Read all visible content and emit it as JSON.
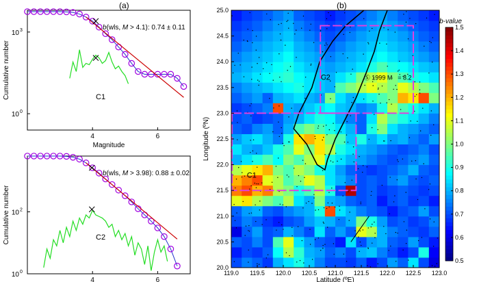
{
  "panels": {
    "a": "(a)",
    "b": "(b)"
  },
  "chart_data": [
    {
      "id": "c1",
      "type": "line",
      "title": "",
      "xlabel": "Magnitude",
      "ylabel": "Cumulative number",
      "xlim": [
        2.0,
        7.0
      ],
      "x_ticks": [
        "4",
        "6"
      ],
      "x_tick_values": [
        4,
        6
      ],
      "y_ticks": [
        "10",
        "10"
      ],
      "y_tick_superscripts": [
        "3",
        "0"
      ],
      "y_log_range": [
        -0.6,
        3.8
      ],
      "y_tick_exponents": [
        3,
        0
      ],
      "label": "C1",
      "annotation": {
        "b": "b",
        "rest": "(wls, ",
        "M": "M",
        "cond": " > 4.1): 0.74 ± 0.11"
      },
      "mc_marker": {
        "x": 4.1,
        "y_log": 2.05
      },
      "series": [
        {
          "name": "",
          "role": "cumulative",
          "color": "#a000e0",
          "x": [
            2.0,
            2.2,
            2.4,
            2.6,
            2.8,
            3.0,
            3.2,
            3.4,
            3.6,
            3.8,
            4.0,
            4.2,
            4.4,
            4.6,
            4.8,
            5.0,
            5.2,
            5.4,
            5.6,
            5.8,
            6.0,
            6.2,
            6.4,
            6.6,
            6.8
          ],
          "log_y": [
            3.75,
            3.75,
            3.75,
            3.75,
            3.75,
            3.75,
            3.74,
            3.72,
            3.66,
            3.55,
            3.4,
            3.18,
            2.94,
            2.72,
            2.45,
            2.18,
            1.85,
            1.55,
            1.45,
            1.45,
            1.45,
            1.45,
            1.45,
            1.3,
            1.0
          ]
        },
        {
          "name": "",
          "role": "frequency",
          "color": "#22dd22",
          "x": [
            3.3,
            3.4,
            3.5,
            3.6,
            3.7,
            3.8,
            3.9,
            4.0,
            4.1,
            4.2,
            4.3,
            4.4,
            4.5,
            4.6,
            4.7,
            4.8,
            4.9,
            5.0,
            5.1
          ],
          "log_y": [
            1.3,
            1.9,
            1.55,
            2.35,
            1.7,
            1.85,
            1.8,
            2.0,
            2.15,
            2.05,
            1.85,
            1.95,
            2.25,
            1.9,
            1.65,
            1.75,
            1.55,
            1.4,
            1.1
          ]
        },
        {
          "name": "",
          "role": "fit",
          "color": "#cc0000",
          "x": [
            3.8,
            6.8
          ],
          "log_y": [
            3.55,
            0.6
          ]
        }
      ]
    },
    {
      "id": "c2",
      "type": "line",
      "title": "",
      "xlabel": "Magnitude",
      "ylabel": "Cumulative number",
      "xlim": [
        2.0,
        7.0
      ],
      "x_ticks": [
        "4",
        "6"
      ],
      "x_tick_values": [
        4,
        6
      ],
      "y_ticks": [
        "10",
        "10"
      ],
      "y_tick_superscripts": [
        "2",
        "0"
      ],
      "y_log_range": [
        0.0,
        3.8
      ],
      "y_tick_exponents": [
        2,
        0
      ],
      "label": "C2",
      "annotation": {
        "b": "b",
        "rest": "(wls, ",
        "M": "M",
        "cond": " > 3.98): 0.88 ± 0.02"
      },
      "mc_marker": {
        "x": 3.98,
        "y_log": 2.08
      },
      "series": [
        {
          "name": "",
          "role": "cumulative",
          "color": "#a000e0",
          "x": [
            2.0,
            2.2,
            2.4,
            2.6,
            2.8,
            3.0,
            3.2,
            3.4,
            3.6,
            3.8,
            4.0,
            4.2,
            4.4,
            4.6,
            4.8,
            5.0,
            5.2,
            5.4,
            5.6,
            5.8,
            6.0,
            6.2,
            6.4,
            6.6
          ],
          "log_y": [
            3.8,
            3.8,
            3.8,
            3.8,
            3.8,
            3.8,
            3.79,
            3.76,
            3.7,
            3.58,
            3.42,
            3.25,
            3.06,
            2.88,
            2.7,
            2.52,
            2.32,
            2.1,
            1.9,
            1.7,
            1.48,
            1.2,
            0.8,
            0.25
          ]
        },
        {
          "name": "",
          "role": "frequency",
          "color": "#22dd22",
          "x": [
            2.5,
            2.6,
            2.7,
            2.8,
            2.9,
            3.0,
            3.1,
            3.2,
            3.3,
            3.4,
            3.5,
            3.6,
            3.7,
            3.8,
            3.9,
            4.0,
            4.1,
            4.2,
            4.3,
            4.4,
            4.5,
            4.6,
            4.7,
            4.8,
            4.9,
            5.0,
            5.1,
            5.2,
            5.3,
            5.4,
            5.5,
            5.6,
            5.7,
            5.8,
            5.9,
            6.0,
            6.1,
            6.2,
            6.3
          ],
          "log_y": [
            0.2,
            0.8,
            0.5,
            1.1,
            0.9,
            1.4,
            1.0,
            1.5,
            1.2,
            1.7,
            1.4,
            1.8,
            1.6,
            1.9,
            1.8,
            2.05,
            1.9,
            1.85,
            1.8,
            1.7,
            1.5,
            1.6,
            1.2,
            1.4,
            1.1,
            1.3,
            0.9,
            1.2,
            0.6,
            1.0,
            0.8,
            0.3,
            0.9,
            0.1,
            0.7,
            1.1,
            0.7,
            0.9,
            0.4
          ]
        },
        {
          "name": "",
          "role": "fit",
          "color": "#cc0000",
          "x": [
            3.8,
            6.6
          ],
          "log_y": [
            3.58,
            1.12
          ]
        }
      ]
    },
    {
      "id": "bmap",
      "type": "heatmap",
      "title": "",
      "xlabel": "Latitude (ºE)",
      "ylabel": "Longitude (ºN)",
      "xlim": [
        119.0,
        123.0
      ],
      "ylim": [
        20.0,
        25.0
      ],
      "x_ticks": [
        "119.0",
        "119.5",
        "120.0",
        "120.5",
        "121.0",
        "121.5",
        "122.0",
        "122.5",
        "123.0"
      ],
      "y_ticks": [
        "20.0",
        "20.5",
        "21.0",
        "21.5",
        "22.0",
        "22.5",
        "23.0",
        "23.5",
        "24.0",
        "24.5",
        "25.0"
      ],
      "colorbar": {
        "label": "b-value",
        "min": 0.5,
        "max": 1.5,
        "ticks": [
          "0.5",
          "0.6",
          "0.7",
          "0.8",
          "0.9",
          "1.0",
          "1.1",
          "1.2",
          "1.3",
          "1.4",
          "1.5"
        ]
      },
      "region_labels": {
        "c1": "C1",
        "c2": "C2"
      },
      "text_annotation": "Ⓢ 1999 M",
      "text_annotation_tail": "= 8.2",
      "cell_size_deg": 0.2,
      "grid_origin": [
        119.0,
        20.0
      ],
      "values": [
        [
          0.7,
          0.75,
          0.72,
          0.68,
          0.8,
          0.85,
          0.9,
          0.82,
          0.75,
          0.7,
          0.7,
          0.68,
          0.72,
          0.65,
          0.7,
          0.78,
          0.72,
          0.85,
          0.7,
          0.6
        ],
        [
          0.65,
          0.7,
          0.68,
          0.72,
          0.88,
          1.05,
          0.92,
          0.8,
          0.78,
          0.72,
          0.75,
          0.7,
          0.8,
          0.82,
          0.75,
          0.7,
          0.65,
          0.7,
          0.9,
          0.62
        ],
        [
          0.72,
          0.7,
          0.75,
          0.7,
          0.95,
          1.1,
          0.85,
          0.78,
          0.72,
          0.7,
          0.65,
          0.85,
          0.7,
          0.78,
          0.8,
          0.72,
          0.7,
          0.78,
          0.7,
          0.65
        ],
        [
          0.6,
          0.72,
          0.78,
          0.7,
          0.72,
          0.8,
          0.75,
          0.7,
          0.85,
          0.72,
          0.78,
          0.72,
          1.1,
          1.05,
          0.8,
          0.75,
          0.72,
          0.7,
          0.68,
          0.72
        ],
        [
          0.7,
          0.75,
          0.72,
          0.68,
          0.65,
          0.7,
          0.72,
          0.78,
          0.82,
          0.8,
          0.75,
          0.8,
          1.0,
          0.9,
          0.78,
          0.7,
          0.72,
          0.68,
          0.7,
          0.75
        ],
        [
          0.72,
          0.78,
          0.8,
          0.72,
          0.7,
          0.75,
          0.78,
          0.8,
          0.9,
          1.3,
          0.85,
          0.8,
          0.75,
          0.72,
          0.7,
          0.65,
          0.7,
          0.72,
          0.78,
          0.7
        ],
        [
          1.1,
          1.15,
          1.05,
          1.0,
          0.95,
          1.05,
          0.85,
          0.8,
          1.0,
          0.8,
          0.78,
          0.72,
          0.7,
          0.72,
          0.65,
          0.7,
          0.72,
          0.68,
          0.7,
          0.65
        ],
        [
          1.25,
          1.3,
          1.2,
          1.25,
          1.05,
          1.0,
          0.9,
          0.95,
          1.05,
          0.9,
          0.7,
          1.45,
          0.7,
          0.72,
          0.68,
          0.7,
          0.72,
          0.7,
          0.68,
          0.7
        ],
        [
          1.2,
          1.25,
          1.3,
          1.1,
          1.05,
          0.95,
          1.0,
          1.1,
          1.05,
          0.85,
          0.8,
          0.75,
          0.7,
          0.72,
          0.7,
          0.75,
          0.78,
          0.72,
          0.7,
          0.72
        ],
        [
          1.05,
          1.1,
          1.15,
          1.2,
          1.0,
          0.95,
          1.05,
          1.0,
          0.9,
          0.85,
          0.78,
          0.72,
          0.7,
          0.68,
          0.7,
          0.72,
          0.75,
          0.8,
          0.72,
          0.7
        ],
        [
          0.8,
          0.85,
          0.9,
          0.95,
          0.88,
          1.0,
          0.95,
          1.05,
          1.1,
          0.9,
          0.85,
          0.8,
          0.78,
          0.75,
          0.72,
          0.7,
          0.72,
          0.75,
          0.78,
          0.72
        ],
        [
          0.85,
          0.8,
          0.78,
          0.82,
          0.9,
          0.95,
          1.1,
          1.0,
          1.15,
          1.05,
          0.9,
          0.85,
          0.8,
          0.78,
          0.75,
          0.72,
          0.7,
          0.72,
          0.75,
          0.7
        ],
        [
          0.78,
          0.82,
          0.85,
          0.8,
          0.75,
          0.9,
          1.15,
          1.2,
          1.15,
          1.0,
          0.95,
          0.82,
          0.9,
          0.8,
          0.85,
          0.78,
          0.8,
          0.75,
          0.72,
          0.78
        ],
        [
          0.72,
          0.7,
          0.75,
          0.78,
          0.72,
          0.8,
          0.95,
          1.0,
          0.95,
          0.9,
          0.85,
          0.8,
          0.72,
          0.9,
          1.0,
          0.85,
          0.8,
          0.78,
          0.75,
          0.72
        ],
        [
          0.7,
          0.72,
          0.68,
          0.7,
          0.72,
          0.78,
          0.8,
          0.85,
          0.9,
          0.88,
          0.8,
          0.75,
          0.72,
          0.85,
          1.05,
          0.95,
          0.9,
          0.85,
          0.8,
          0.75
        ],
        [
          0.68,
          0.7,
          0.72,
          0.75,
          1.3,
          0.8,
          0.78,
          0.82,
          0.85,
          0.88,
          0.82,
          0.8,
          0.75,
          0.78,
          0.9,
          1.05,
          0.95,
          0.9,
          0.85,
          0.8
        ],
        [
          0.72,
          0.75,
          0.78,
          0.72,
          0.8,
          0.82,
          0.85,
          0.8,
          0.78,
          1.0,
          0.85,
          0.8,
          0.85,
          0.9,
          0.95,
          1.0,
          1.2,
          1.15,
          1.3,
          1.0
        ],
        [
          0.75,
          0.78,
          0.8,
          0.82,
          0.85,
          0.88,
          0.9,
          0.85,
          0.82,
          0.8,
          0.95,
          1.0,
          1.05,
          1.1,
          1.05,
          1.0,
          1.1,
          1.05,
          1.0,
          0.95
        ],
        [
          0.8,
          0.82,
          0.85,
          0.88,
          0.9,
          0.92,
          0.88,
          0.85,
          0.82,
          0.8,
          0.85,
          0.9,
          1.0,
          1.05,
          1.1,
          1.0,
          0.95,
          0.9,
          0.88,
          0.85
        ],
        [
          0.78,
          0.8,
          0.82,
          0.85,
          0.88,
          0.9,
          0.85,
          0.82,
          0.8,
          0.78,
          0.8,
          0.82,
          0.85,
          0.9,
          0.95,
          0.9,
          0.88,
          0.85,
          0.82,
          0.8
        ],
        [
          0.75,
          0.78,
          0.8,
          0.82,
          0.85,
          0.88,
          0.82,
          0.8,
          0.78,
          0.75,
          0.78,
          0.8,
          0.82,
          0.85,
          0.88,
          0.85,
          0.82,
          0.8,
          0.78,
          0.75
        ],
        [
          0.72,
          0.75,
          0.78,
          0.8,
          0.82,
          0.85,
          0.8,
          0.78,
          0.75,
          0.72,
          0.75,
          0.78,
          0.8,
          0.82,
          0.85,
          0.82,
          0.8,
          0.78,
          0.75,
          0.72
        ],
        [
          0.7,
          0.72,
          0.75,
          0.78,
          0.8,
          0.82,
          0.78,
          0.75,
          0.72,
          0.7,
          0.72,
          0.75,
          0.78,
          0.8,
          0.82,
          0.8,
          0.78,
          0.75,
          0.72,
          0.7
        ],
        [
          0.68,
          0.7,
          0.72,
          0.75,
          0.78,
          0.8,
          0.75,
          0.72,
          0.7,
          0.68,
          0.7,
          0.72,
          0.75,
          0.78,
          0.8,
          0.78,
          0.75,
          0.72,
          0.7,
          0.68
        ],
        [
          0.65,
          0.68,
          0.7,
          0.72,
          0.75,
          0.78,
          0.72,
          0.7,
          0.68,
          0.65,
          0.68,
          0.7,
          0.72,
          0.75,
          0.78,
          0.75,
          0.72,
          0.7,
          0.68,
          0.65
        ]
      ],
      "regions": [
        {
          "label": "C1",
          "lon_range": [
            119.0,
            121.4
          ],
          "lat_range": [
            21.5,
            23.0
          ]
        },
        {
          "label": "C2",
          "lon_range": [
            120.7,
            122.5
          ],
          "lat_range": [
            23.0,
            24.7
          ]
        }
      ]
    }
  ]
}
